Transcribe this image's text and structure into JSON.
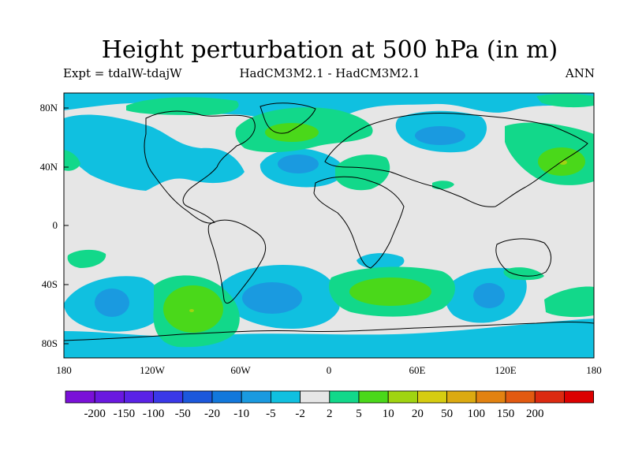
{
  "title": "Height perturbation at 500 hPa (in m)",
  "expt_label": "Expt = tdalW-tdajW",
  "model_label": "HadCM3M2.1 - HadCM3M2.1",
  "season_label": "ANN",
  "axes": {
    "lat_ticks": [
      "80N",
      "40N",
      "0",
      "40S",
      "80S"
    ],
    "lon_ticks": [
      "180",
      "120W",
      "60W",
      "0",
      "60E",
      "120E",
      "180"
    ]
  },
  "colorbar": {
    "colors": [
      "#7a10d8",
      "#6a18e0",
      "#5a22e6",
      "#3a38e8",
      "#1c58dc",
      "#1278dc",
      "#1a9ae0",
      "#10c0e0",
      "#e6e6e6",
      "#12d88a",
      "#4ad81a",
      "#a0d410",
      "#d6cc10",
      "#dcaa10",
      "#e28210",
      "#e25a10",
      "#dc2a10",
      "#dc0000"
    ],
    "labels": [
      "-200",
      "-150",
      "-100",
      "-50",
      "-20",
      "-10",
      "-5",
      "-2",
      "2",
      "5",
      "10",
      "20",
      "50",
      "100",
      "150",
      "200"
    ]
  },
  "map_colors": {
    "background": "#e6e6e6",
    "negative_light": "#10c0e0",
    "negative_medium": "#1a9ae0",
    "positive_light": "#12d88a",
    "positive_medium": "#4ad81a",
    "positive_strong": "#a0d410",
    "coastline": "#000000"
  }
}
